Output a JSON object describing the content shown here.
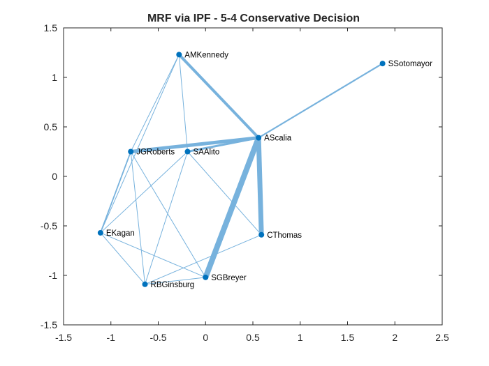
{
  "chart_data": {
    "type": "scatter",
    "title": "MRF via IPF - 5-4 Conservative Decision",
    "xlim": [
      -1.5,
      2.5
    ],
    "ylim": [
      -1.5,
      1.5
    ],
    "xticks": [
      -1.5,
      -1,
      -0.5,
      0,
      0.5,
      1,
      1.5,
      2,
      2.5
    ],
    "yticks": [
      -1.5,
      -1,
      -0.5,
      0,
      0.5,
      1,
      1.5
    ],
    "xtick_labels": [
      "-1.5",
      "-1",
      "-0.5",
      "0",
      "0.5",
      "1",
      "1.5",
      "2",
      "2.5"
    ],
    "ytick_labels": [
      "-1.5",
      "-1",
      "-0.5",
      "0",
      "0.5",
      "1",
      "1.5"
    ],
    "grid": false,
    "node_color": "#0072BD",
    "edge_color": "#77B2DD",
    "nodes": [
      {
        "name": "AMKennedy",
        "x": -0.28,
        "y": 1.23
      },
      {
        "name": "SSotomayor",
        "x": 1.87,
        "y": 1.14
      },
      {
        "name": "AScalia",
        "x": 0.56,
        "y": 0.39
      },
      {
        "name": "JGRoberts",
        "x": -0.79,
        "y": 0.25
      },
      {
        "name": "SAAlito",
        "x": -0.19,
        "y": 0.25
      },
      {
        "name": "EKagan",
        "x": -1.11,
        "y": -0.57
      },
      {
        "name": "CThomas",
        "x": 0.59,
        "y": -0.59
      },
      {
        "name": "SGBreyer",
        "x": 0.0,
        "y": -1.02
      },
      {
        "name": "RBGinsburg",
        "x": -0.64,
        "y": -1.09
      }
    ],
    "edges": [
      {
        "source": "AScalia",
        "target": "SGBreyer",
        "weight": 8
      },
      {
        "source": "AScalia",
        "target": "CThomas",
        "weight": 7
      },
      {
        "source": "AScalia",
        "target": "JGRoberts",
        "weight": 5
      },
      {
        "source": "AScalia",
        "target": "AMKennedy",
        "weight": 4
      },
      {
        "source": "AScalia",
        "target": "SAAlito",
        "weight": 3
      },
      {
        "source": "AScalia",
        "target": "SSotomayor",
        "weight": 2.2
      },
      {
        "source": "JGRoberts",
        "target": "EKagan",
        "weight": 1.8
      },
      {
        "source": "JGRoberts",
        "target": "AMKennedy",
        "weight": 1
      },
      {
        "source": "JGRoberts",
        "target": "RBGinsburg",
        "weight": 1
      },
      {
        "source": "JGRoberts",
        "target": "SGBreyer",
        "weight": 1
      },
      {
        "source": "AMKennedy",
        "target": "SAAlito",
        "weight": 1
      },
      {
        "source": "AMKennedy",
        "target": "EKagan",
        "weight": 1
      },
      {
        "source": "SAAlito",
        "target": "EKagan",
        "weight": 1
      },
      {
        "source": "SAAlito",
        "target": "RBGinsburg",
        "weight": 1
      },
      {
        "source": "SAAlito",
        "target": "CThomas",
        "weight": 1
      },
      {
        "source": "EKagan",
        "target": "RBGinsburg",
        "weight": 1
      },
      {
        "source": "EKagan",
        "target": "SGBreyer",
        "weight": 1
      },
      {
        "source": "RBGinsburg",
        "target": "SGBreyer",
        "weight": 1
      },
      {
        "source": "RBGinsburg",
        "target": "CThomas",
        "weight": 1
      }
    ]
  }
}
